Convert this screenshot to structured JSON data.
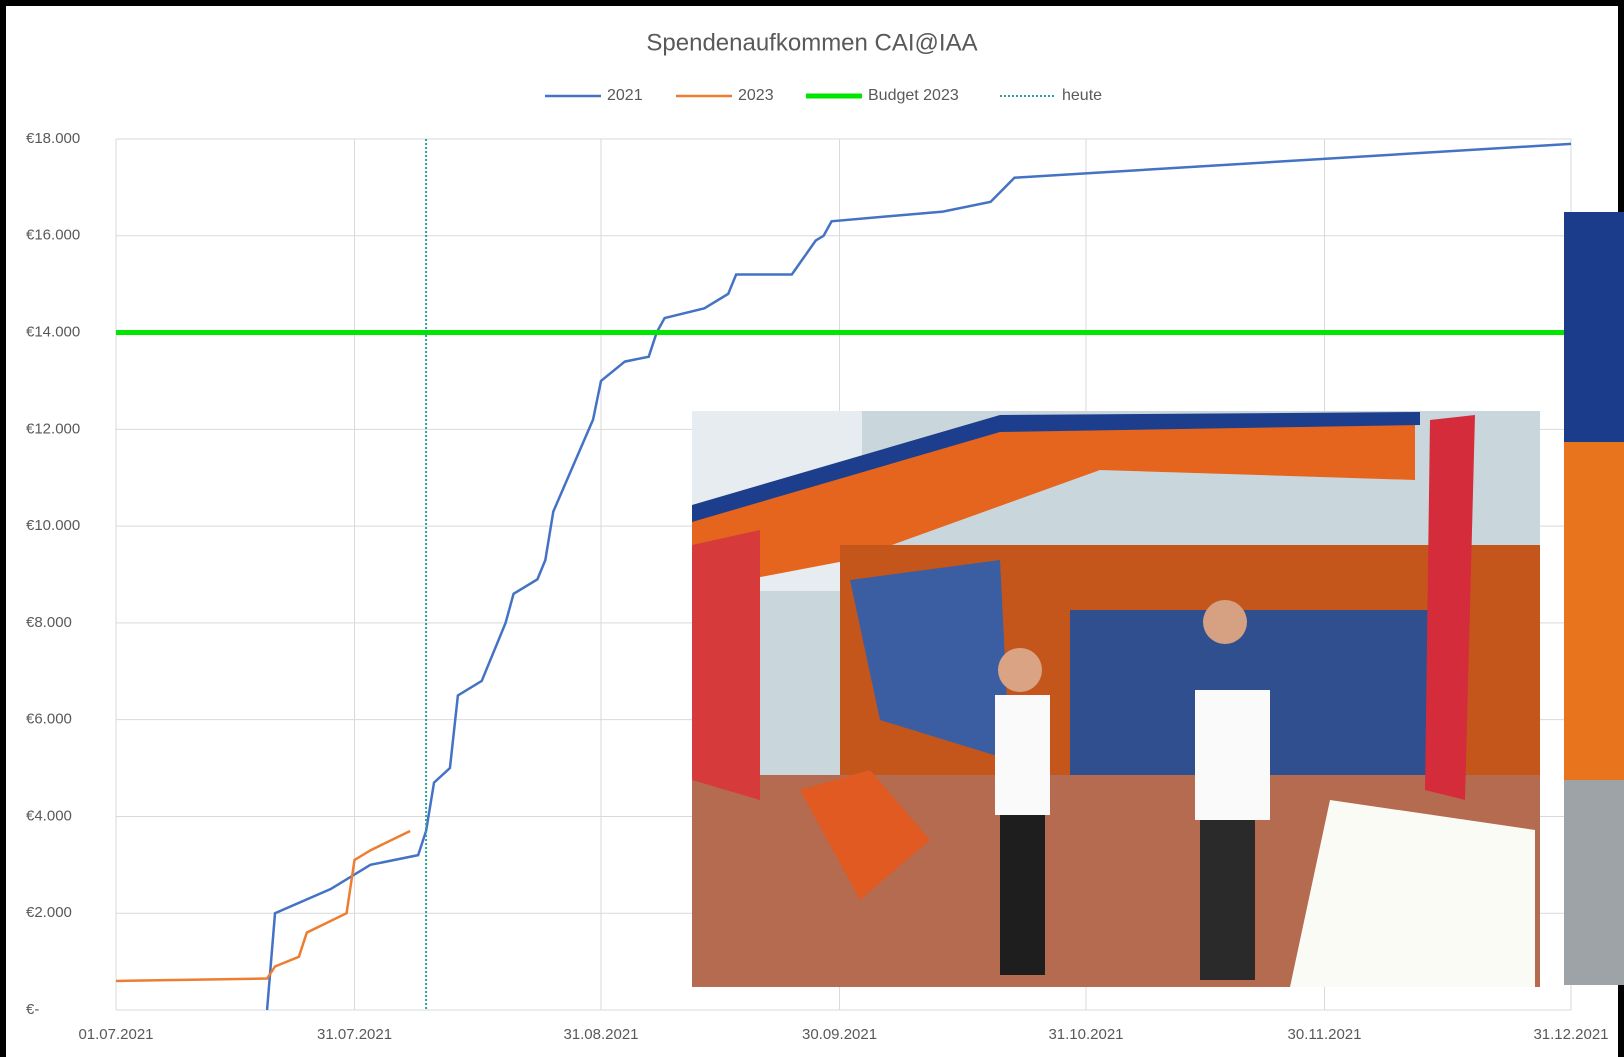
{
  "chart_data": {
    "type": "line",
    "title": "Spendenaufkommen  CAI@IAA",
    "series": [
      {
        "name": "2021",
        "color": "#4472c4",
        "x": [
          "20.07.2021",
          "21.07.2021",
          "28.07.2021",
          "02.08.2021",
          "08.08.2021",
          "09.08.2021",
          "10.08.2021",
          "12.08.2021",
          "13.08.2021",
          "16.08.2021",
          "19.08.2021",
          "20.08.2021",
          "23.08.2021",
          "24.08.2021",
          "25.08.2021",
          "30.08.2021",
          "31.08.2021",
          "03.09.2021",
          "06.09.2021",
          "07.09.2021",
          "08.09.2021",
          "13.09.2021",
          "16.09.2021",
          "17.09.2021",
          "24.09.2021",
          "27.09.2021",
          "28.09.2021",
          "29.09.2021",
          "13.10.2021",
          "19.10.2021",
          "22.10.2021",
          "01.11.2021",
          "31.12.2021"
        ],
        "values": [
          0,
          2000,
          2500,
          3000,
          3200,
          3700,
          4700,
          5000,
          6500,
          6800,
          8000,
          8600,
          8900,
          9300,
          10300,
          12200,
          13000,
          13400,
          13500,
          14000,
          14300,
          14500,
          14800,
          15200,
          15200,
          15900,
          16000,
          16300,
          16500,
          16700,
          17200,
          17300,
          17900
        ]
      },
      {
        "name": "2023",
        "color": "#ed7d31",
        "x": [
          "01.07.2021",
          "20.07.2021",
          "21.07.2021",
          "24.07.2021",
          "25.07.2021",
          "30.07.2021",
          "31.07.2021",
          "02.08.2021",
          "07.08.2021"
        ],
        "values": [
          600,
          650,
          900,
          1100,
          1600,
          2000,
          3100,
          3300,
          3700
        ]
      }
    ],
    "reference_lines": [
      {
        "name": "Budget 2023",
        "color": "#00e600",
        "y": 14000
      },
      {
        "name": "heute",
        "color": "#2aa39a",
        "x": "09.08.2021"
      }
    ],
    "xlim": [
      "01.07.2021",
      "31.12.2021"
    ],
    "xticks": [
      "01.07.2021",
      "31.07.2021",
      "31.08.2021",
      "30.09.2021",
      "31.10.2021",
      "30.11.2021",
      "31.12.2021"
    ],
    "ylim": [
      0,
      18000
    ],
    "yticks": [
      {
        "value": 0,
        "label": "€-"
      },
      {
        "value": 2000,
        "label": "€2.000"
      },
      {
        "value": 4000,
        "label": "€4.000"
      },
      {
        "value": 6000,
        "label": "€6.000"
      },
      {
        "value": 8000,
        "label": "€8.000"
      },
      {
        "value": 10000,
        "label": "€10.000"
      },
      {
        "value": 12000,
        "label": "€12.000"
      },
      {
        "value": 14000,
        "label": "€14.000"
      },
      {
        "value": 16000,
        "label": "€16.000"
      },
      {
        "value": 18000,
        "label": "€18.000"
      }
    ],
    "grid": true
  }
}
